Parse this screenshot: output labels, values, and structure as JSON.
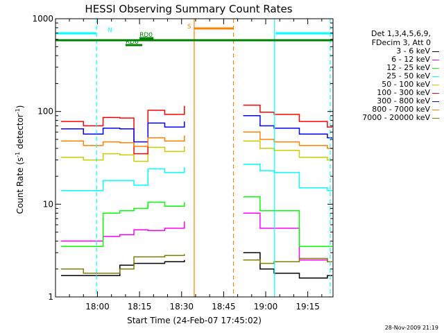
{
  "chart_data": {
    "type": "line",
    "title": "HESSI Observing Summary Count Rates",
    "xlabel": "Start Time (24-Feb-07 17:45:02)",
    "ylabel_main": "Count Rate (s",
    "ylabel_sup1": "-1",
    "ylabel_mid": " detector",
    "ylabel_sup2": "-1",
    "ylabel_end": ")",
    "yscale": "log",
    "ylim": [
      1,
      1000
    ],
    "xlim": [
      "17:45:02",
      "19:24:00"
    ],
    "x_ticks": [
      "18:00",
      "18:15",
      "18:30",
      "18:45",
      "19:00",
      "19:15"
    ],
    "y_ticks": [
      "1",
      "10",
      "100",
      "1000"
    ],
    "legend_header": [
      "Det 1,3,4,5,6,9,",
      "FDecim 3, Att 0"
    ],
    "legend_position": "right",
    "flags": [
      {
        "label": "N",
        "color": "#00ffff",
        "segments": [
          [
            "17:45:02",
            "17:59:30"
          ],
          [
            "19:03:30",
            "19:24:00"
          ]
        ]
      },
      {
        "label": "RD6",
        "color": "#008000",
        "segments": [
          [
            "18:10:00",
            "18:16:00"
          ]
        ]
      },
      {
        "label": "RD0",
        "color": "#008000",
        "segments": [
          [
            "18:15:00",
            "18:20:00"
          ]
        ]
      },
      {
        "label": "S",
        "color": "#ff8000",
        "segments": [
          [
            "18:34:30",
            "18:48:30"
          ]
        ]
      }
    ],
    "flag_line": {
      "label": "",
      "color": "#008000",
      "range": [
        "17:45:02",
        "19:24:00"
      ]
    },
    "vertical_markers": [
      {
        "time": "17:59:40",
        "color": "#00ffff",
        "style": "dashed"
      },
      {
        "time": "19:03:10",
        "color": "#00ffff",
        "style": "solid"
      },
      {
        "time": "19:23:00",
        "color": "#00ffff",
        "style": "dashed"
      },
      {
        "time": "18:34:30",
        "color": "#ff8000",
        "style": "solid"
      },
      {
        "time": "18:48:30",
        "color": "#ff8000",
        "style": "dashed"
      }
    ],
    "gap": [
      "18:34:30",
      "18:50:00"
    ],
    "series": [
      {
        "name": "3 - 6 keV",
        "color": "#000000",
        "values": [
          1.7,
          1.7,
          1.7,
          2.2,
          2.3,
          2.3,
          2.4,
          2.5,
          0,
          0,
          3.0,
          2.0,
          1.8,
          1.6,
          1.7
        ]
      },
      {
        "name": "6 - 12 keV",
        "color": "#ff00ff",
        "values": [
          4.0,
          4.0,
          4.5,
          4.7,
          5.3,
          5.2,
          5.5,
          6.5,
          0,
          0,
          8.0,
          5.5,
          5.5,
          2.5,
          2.4
        ]
      },
      {
        "name": "12 - 25 keV",
        "color": "#00ff00",
        "values": [
          3.5,
          3.5,
          8.0,
          8.5,
          9.0,
          10.5,
          9.5,
          10.5,
          0,
          0,
          12.0,
          8.5,
          8.5,
          3.5,
          3.5
        ]
      },
      {
        "name": "25 - 50 keV",
        "color": "#00ffff",
        "values": [
          14.0,
          14.0,
          18.0,
          18.0,
          16.0,
          24.0,
          22.0,
          25.0,
          0,
          0,
          27.0,
          23.0,
          22.0,
          15.0,
          14.0
        ]
      },
      {
        "name": "50 - 100 keV",
        "color": "#cccc00",
        "values": [
          32.0,
          30.0,
          35.0,
          34.0,
          29.0,
          41.0,
          37.0,
          42.0,
          0,
          0,
          48.0,
          40.0,
          38.0,
          32.0,
          30.0
        ]
      },
      {
        "name": "100 - 300 keV",
        "color": "#ff0000",
        "values": [
          78.0,
          70.0,
          86.0,
          85.0,
          35.0,
          103.0,
          93.0,
          115.0,
          0,
          0,
          117.0,
          98.0,
          93.0,
          78.0,
          68.0
        ]
      },
      {
        "name": "300 - 800 keV",
        "color": "#0000ff",
        "values": [
          65.0,
          57.0,
          66.0,
          65.0,
          47.0,
          75.0,
          68.0,
          78.0,
          0,
          0,
          90.0,
          70.0,
          66.0,
          57.0,
          52.0
        ]
      },
      {
        "name": "800 - 7000 keV",
        "color": "#ff8000",
        "values": [
          48.0,
          43.0,
          47.0,
          46.0,
          42.0,
          52.0,
          48.0,
          55.0,
          0,
          0,
          60.0,
          50.0,
          47.0,
          43.0,
          40.0
        ]
      },
      {
        "name": "7000 - 20000 keV",
        "color": "#808000",
        "values": [
          2.0,
          1.8,
          1.8,
          2.0,
          2.7,
          2.7,
          2.8,
          2.9,
          0,
          0,
          2.5,
          2.3,
          2.4,
          2.6,
          2.4
        ]
      }
    ],
    "x": [
      "17:47",
      "17:55",
      "18:02",
      "18:08",
      "18:13",
      "18:18",
      "18:24",
      "18:31",
      "18:40",
      "18:47",
      "18:52",
      "18:58",
      "19:03",
      "19:12",
      "19:22"
    ]
  },
  "footer_date": "28-Nov-2009 21:19"
}
